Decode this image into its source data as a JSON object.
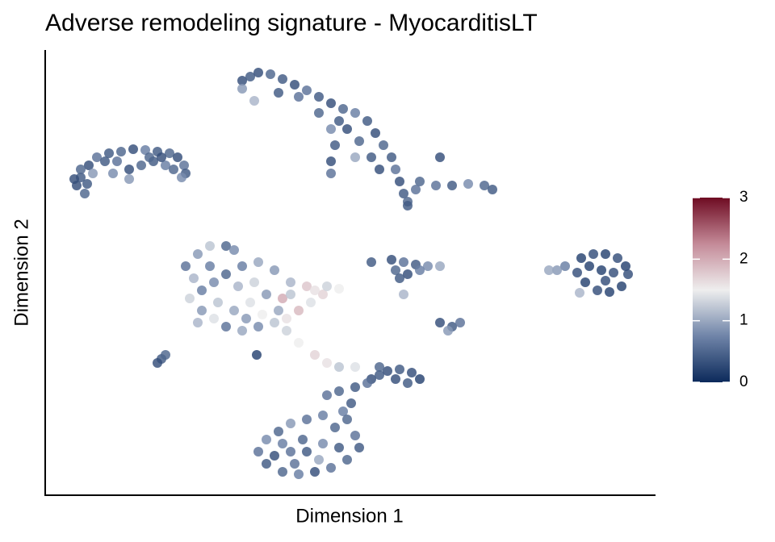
{
  "chart_data": {
    "type": "scatter",
    "title": "Adverse remodeling signature - MyocarditisLT",
    "x_label": "Dimension 1",
    "y_label": "Dimension 2",
    "xlim": [
      0,
      756
    ],
    "ylim": [
      0,
      552
    ],
    "clim": [
      0,
      3
    ],
    "cticks": [
      0,
      1,
      2,
      3
    ],
    "colorscale": [
      "#0c2a5b",
      "#6f84a8",
      "#eeeeee",
      "#c48a98",
      "#6e0b22"
    ],
    "x": [
      44,
      39,
      49,
      54,
      64,
      79,
      94,
      109,
      124,
      139,
      154,
      164,
      172,
      174,
      169,
      44,
      59,
      74,
      89,
      104,
      119,
      134,
      149,
      159,
      36,
      52,
      84,
      104,
      144,
      129,
      244,
      254,
      264,
      279,
      294,
      309,
      324,
      339,
      354,
      369,
      384,
      399,
      409,
      419,
      429,
      434,
      439,
      444,
      449,
      354,
      359,
      354,
      354,
      374,
      389,
      404,
      414,
      244,
      259,
      289,
      314,
      339,
      364,
      384,
      464,
      484,
      504,
      524,
      544,
      554,
      489,
      459,
      449,
      174,
      189,
      204,
      224,
      234,
      184,
      194,
      179,
      194,
      209,
      224,
      244,
      264,
      284,
      299,
      314,
      329,
      344,
      364,
      349,
      324,
      304,
      284,
      264,
      244,
      224,
      209,
      214,
      234,
      254,
      274,
      294,
      239,
      204,
      259,
      289,
      269,
      249,
      304,
      334,
      189,
      299,
      314,
      334,
      349,
      364,
      384,
      404,
      429,
      444,
      459,
      474,
      489,
      434,
      449,
      464,
      439,
      444,
      504,
      514,
      489,
      499,
      664,
      679,
      694,
      709,
      719,
      722,
      714,
      699,
      684,
      669,
      659,
      689,
      704,
      674,
      644,
      634,
      624,
      662,
      694,
      144,
      149,
      139,
      262,
      349,
      364,
      384,
      404,
      414,
      424,
      439,
      454,
      464,
      449,
      434,
      414,
      399,
      379,
      369,
      374,
      384,
      389,
      374,
      354,
      334,
      314,
      294,
      274,
      264,
      274,
      289,
      304,
      324,
      344,
      359,
      344,
      324,
      304,
      294,
      319,
      339,
      364,
      284,
      309
    ],
    "y": [
      394,
      384,
      374,
      409,
      419,
      424,
      426,
      429,
      428,
      426,
      424,
      419,
      409,
      399,
      394,
      404,
      399,
      414,
      414,
      404,
      409,
      414,
      409,
      404,
      392,
      386,
      399,
      392,
      419,
      419,
      514,
      519,
      524,
      522,
      516,
      509,
      502,
      494,
      486,
      479,
      474,
      464,
      449,
      434,
      419,
      404,
      389,
      374,
      364,
      454,
      434,
      414,
      399,
      454,
      439,
      419,
      404,
      504,
      489,
      499,
      494,
      474,
      464,
      419,
      389,
      384,
      384,
      386,
      384,
      379,
      419,
      379,
      359,
      284,
      299,
      309,
      309,
      304,
      269,
      254,
      244,
      229,
      219,
      209,
      204,
      209,
      214,
      219,
      229,
      239,
      249,
      256,
      259,
      259,
      264,
      279,
      289,
      284,
      274,
      264,
      239,
      229,
      239,
      249,
      244,
      259,
      284,
      264,
      229,
      224,
      219,
      249,
      254,
      214,
      204,
      189,
      174,
      164,
      159,
      159,
      289,
      292,
      289,
      286,
      284,
      284,
      279,
      274,
      279,
      269,
      249,
      209,
      214,
      214,
      204,
      294,
      299,
      299,
      294,
      284,
      274,
      259,
      252,
      254,
      264,
      276,
      279,
      276,
      284,
      284,
      279,
      279,
      251,
      266,
      169,
      174,
      164,
      174,
      124,
      129,
      134,
      144,
      149,
      154,
      156,
      152,
      144,
      139,
      144,
      159,
      139,
      114,
      104,
      94,
      74,
      59,
      44,
      34,
      29,
      26,
      29,
      39,
      54,
      69,
      79,
      89,
      94,
      99,
      84,
      64,
      54,
      54,
      64,
      69,
      44,
      59,
      49,
      39
    ],
    "values": [
      0.4,
      0.3,
      0.5,
      0.3,
      0.6,
      0.4,
      0.5,
      0.3,
      0.7,
      0.4,
      0.5,
      0.3,
      0.6,
      0.4,
      0.8,
      0.5,
      0.9,
      0.4,
      0.6,
      0.3,
      0.5,
      0.4,
      0.7,
      0.5,
      0.3,
      0.4,
      0.8,
      0.9,
      0.3,
      0.5,
      0.3,
      0.4,
      0.3,
      0.5,
      0.4,
      0.3,
      0.6,
      0.4,
      0.3,
      0.5,
      0.7,
      0.4,
      0.3,
      0.5,
      0.4,
      0.6,
      0.3,
      0.4,
      0.5,
      0.8,
      0.4,
      0.3,
      0.6,
      0.3,
      0.5,
      0.4,
      0.3,
      0.9,
      1.1,
      0.4,
      0.6,
      0.5,
      0.4,
      1.0,
      0.5,
      0.6,
      0.4,
      0.8,
      0.5,
      0.4,
      0.3,
      0.6,
      0.4,
      0.6,
      0.9,
      1.2,
      0.5,
      0.8,
      1.1,
      0.7,
      1.3,
      0.9,
      1.4,
      0.6,
      1.0,
      0.8,
      1.2,
      1.6,
      1.9,
      1.4,
      1.7,
      1.5,
      1.3,
      1.8,
      1.1,
      0.9,
      1.0,
      0.7,
      0.5,
      0.8,
      1.2,
      1.0,
      1.4,
      0.9,
      2.0,
      1.1,
      0.7,
      1.3,
      1.0,
      1.5,
      0.9,
      1.2,
      1.6,
      1.1,
      1.3,
      1.5,
      1.7,
      1.6,
      1.2,
      1.4,
      0.4,
      0.3,
      0.6,
      0.4,
      0.8,
      1.0,
      0.5,
      0.3,
      0.7,
      0.4,
      1.1,
      0.4,
      0.6,
      0.3,
      0.9,
      0.2,
      0.3,
      0.2,
      0.3,
      0.2,
      0.3,
      0.2,
      0.2,
      0.3,
      0.2,
      0.3,
      0.2,
      0.3,
      0.2,
      0.7,
      0.9,
      1.0,
      1.1,
      0.3,
      0.4,
      0.5,
      0.3,
      0.2,
      0.6,
      0.5,
      0.4,
      0.3,
      0.4,
      0.3,
      0.4,
      0.3,
      0.2,
      0.4,
      0.3,
      0.5,
      0.6,
      0.4,
      0.7,
      0.5,
      0.6,
      0.4,
      0.5,
      0.6,
      0.3,
      0.7,
      0.5,
      0.4,
      0.6,
      0.8,
      0.5,
      0.9,
      0.6,
      0.7,
      0.5,
      0.8,
      0.4,
      0.6,
      0.7,
      0.5,
      1.0,
      0.4,
      0.3,
      0.6
    ]
  }
}
